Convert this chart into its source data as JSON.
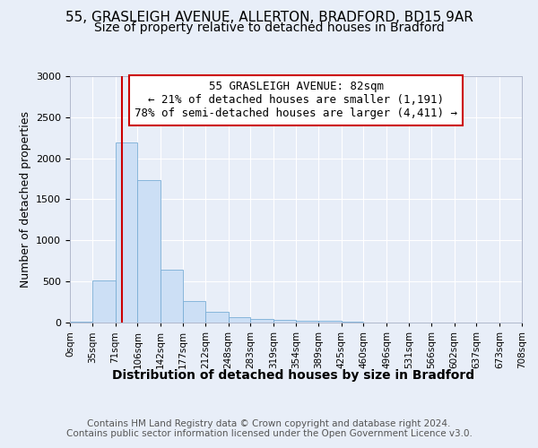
{
  "title1": "55, GRASLEIGH AVENUE, ALLERTON, BRADFORD, BD15 9AR",
  "title2": "Size of property relative to detached houses in Bradford",
  "xlabel": "Distribution of detached houses by size in Bradford",
  "ylabel": "Number of detached properties",
  "footer1": "Contains HM Land Registry data © Crown copyright and database right 2024.",
  "footer2": "Contains public sector information licensed under the Open Government Licence v3.0.",
  "annotation_line1": "55 GRASLEIGH AVENUE: 82sqm",
  "annotation_line2": "← 21% of detached houses are smaller (1,191)",
  "annotation_line3": "78% of semi-detached houses are larger (4,411) →",
  "property_size": 82,
  "bin_edges": [
    0,
    35,
    71,
    106,
    142,
    177,
    212,
    248,
    283,
    319,
    354,
    389,
    425,
    460,
    496,
    531,
    566,
    602,
    637,
    673,
    708
  ],
  "bar_heights": [
    10,
    510,
    2190,
    1730,
    640,
    260,
    130,
    70,
    40,
    30,
    25,
    20,
    15,
    0,
    0,
    0,
    0,
    0,
    0,
    0
  ],
  "bar_color": "#ccdff5",
  "bar_edge_color": "#7aaed6",
  "vline_color": "#cc0000",
  "vline_x": 82,
  "box_edge_color": "#cc0000",
  "ylim": [
    0,
    3000
  ],
  "yticks": [
    0,
    500,
    1000,
    1500,
    2000,
    2500,
    3000
  ],
  "background_color": "#e8eef8",
  "plot_bg_color": "#e8eef8",
  "title1_fontsize": 11,
  "title2_fontsize": 10,
  "xlabel_fontsize": 10,
  "ylabel_fontsize": 9,
  "tick_fontsize": 8,
  "annotation_fontsize": 9,
  "footer_fontsize": 7.5
}
